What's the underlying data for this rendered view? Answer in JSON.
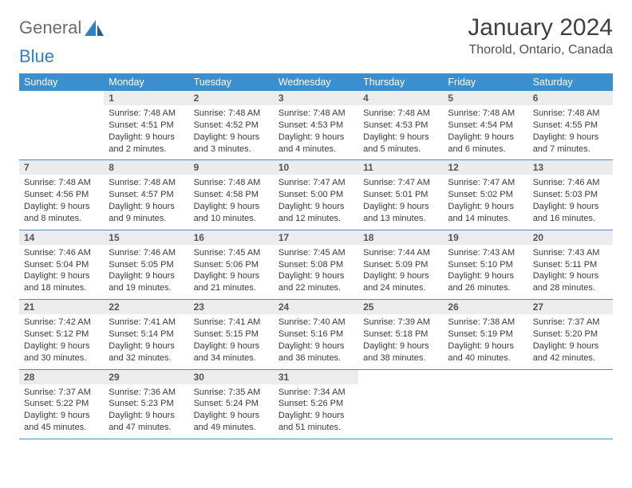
{
  "logo": {
    "text1": "General",
    "text2": "Blue"
  },
  "header": {
    "title": "January 2024",
    "location": "Thorold, Ontario, Canada"
  },
  "weekdays": [
    "Sunday",
    "Monday",
    "Tuesday",
    "Wednesday",
    "Thursday",
    "Friday",
    "Saturday"
  ],
  "colors": {
    "header_bg": "#3b8fce",
    "header_fg": "#ffffff",
    "daynum_bg": "#ececec",
    "rule": "#3b8fce",
    "logo_blue": "#2f7fc1"
  },
  "weeks": [
    [
      {
        "n": "",
        "sunrise": "",
        "sunset": "",
        "daylight": ""
      },
      {
        "n": "1",
        "sunrise": "Sunrise: 7:48 AM",
        "sunset": "Sunset: 4:51 PM",
        "daylight": "Daylight: 9 hours and 2 minutes."
      },
      {
        "n": "2",
        "sunrise": "Sunrise: 7:48 AM",
        "sunset": "Sunset: 4:52 PM",
        "daylight": "Daylight: 9 hours and 3 minutes."
      },
      {
        "n": "3",
        "sunrise": "Sunrise: 7:48 AM",
        "sunset": "Sunset: 4:53 PM",
        "daylight": "Daylight: 9 hours and 4 minutes."
      },
      {
        "n": "4",
        "sunrise": "Sunrise: 7:48 AM",
        "sunset": "Sunset: 4:53 PM",
        "daylight": "Daylight: 9 hours and 5 minutes."
      },
      {
        "n": "5",
        "sunrise": "Sunrise: 7:48 AM",
        "sunset": "Sunset: 4:54 PM",
        "daylight": "Daylight: 9 hours and 6 minutes."
      },
      {
        "n": "6",
        "sunrise": "Sunrise: 7:48 AM",
        "sunset": "Sunset: 4:55 PM",
        "daylight": "Daylight: 9 hours and 7 minutes."
      }
    ],
    [
      {
        "n": "7",
        "sunrise": "Sunrise: 7:48 AM",
        "sunset": "Sunset: 4:56 PM",
        "daylight": "Daylight: 9 hours and 8 minutes."
      },
      {
        "n": "8",
        "sunrise": "Sunrise: 7:48 AM",
        "sunset": "Sunset: 4:57 PM",
        "daylight": "Daylight: 9 hours and 9 minutes."
      },
      {
        "n": "9",
        "sunrise": "Sunrise: 7:48 AM",
        "sunset": "Sunset: 4:58 PM",
        "daylight": "Daylight: 9 hours and 10 minutes."
      },
      {
        "n": "10",
        "sunrise": "Sunrise: 7:47 AM",
        "sunset": "Sunset: 5:00 PM",
        "daylight": "Daylight: 9 hours and 12 minutes."
      },
      {
        "n": "11",
        "sunrise": "Sunrise: 7:47 AM",
        "sunset": "Sunset: 5:01 PM",
        "daylight": "Daylight: 9 hours and 13 minutes."
      },
      {
        "n": "12",
        "sunrise": "Sunrise: 7:47 AM",
        "sunset": "Sunset: 5:02 PM",
        "daylight": "Daylight: 9 hours and 14 minutes."
      },
      {
        "n": "13",
        "sunrise": "Sunrise: 7:46 AM",
        "sunset": "Sunset: 5:03 PM",
        "daylight": "Daylight: 9 hours and 16 minutes."
      }
    ],
    [
      {
        "n": "14",
        "sunrise": "Sunrise: 7:46 AM",
        "sunset": "Sunset: 5:04 PM",
        "daylight": "Daylight: 9 hours and 18 minutes."
      },
      {
        "n": "15",
        "sunrise": "Sunrise: 7:46 AM",
        "sunset": "Sunset: 5:05 PM",
        "daylight": "Daylight: 9 hours and 19 minutes."
      },
      {
        "n": "16",
        "sunrise": "Sunrise: 7:45 AM",
        "sunset": "Sunset: 5:06 PM",
        "daylight": "Daylight: 9 hours and 21 minutes."
      },
      {
        "n": "17",
        "sunrise": "Sunrise: 7:45 AM",
        "sunset": "Sunset: 5:08 PM",
        "daylight": "Daylight: 9 hours and 22 minutes."
      },
      {
        "n": "18",
        "sunrise": "Sunrise: 7:44 AM",
        "sunset": "Sunset: 5:09 PM",
        "daylight": "Daylight: 9 hours and 24 minutes."
      },
      {
        "n": "19",
        "sunrise": "Sunrise: 7:43 AM",
        "sunset": "Sunset: 5:10 PM",
        "daylight": "Daylight: 9 hours and 26 minutes."
      },
      {
        "n": "20",
        "sunrise": "Sunrise: 7:43 AM",
        "sunset": "Sunset: 5:11 PM",
        "daylight": "Daylight: 9 hours and 28 minutes."
      }
    ],
    [
      {
        "n": "21",
        "sunrise": "Sunrise: 7:42 AM",
        "sunset": "Sunset: 5:12 PM",
        "daylight": "Daylight: 9 hours and 30 minutes."
      },
      {
        "n": "22",
        "sunrise": "Sunrise: 7:41 AM",
        "sunset": "Sunset: 5:14 PM",
        "daylight": "Daylight: 9 hours and 32 minutes."
      },
      {
        "n": "23",
        "sunrise": "Sunrise: 7:41 AM",
        "sunset": "Sunset: 5:15 PM",
        "daylight": "Daylight: 9 hours and 34 minutes."
      },
      {
        "n": "24",
        "sunrise": "Sunrise: 7:40 AM",
        "sunset": "Sunset: 5:16 PM",
        "daylight": "Daylight: 9 hours and 36 minutes."
      },
      {
        "n": "25",
        "sunrise": "Sunrise: 7:39 AM",
        "sunset": "Sunset: 5:18 PM",
        "daylight": "Daylight: 9 hours and 38 minutes."
      },
      {
        "n": "26",
        "sunrise": "Sunrise: 7:38 AM",
        "sunset": "Sunset: 5:19 PM",
        "daylight": "Daylight: 9 hours and 40 minutes."
      },
      {
        "n": "27",
        "sunrise": "Sunrise: 7:37 AM",
        "sunset": "Sunset: 5:20 PM",
        "daylight": "Daylight: 9 hours and 42 minutes."
      }
    ],
    [
      {
        "n": "28",
        "sunrise": "Sunrise: 7:37 AM",
        "sunset": "Sunset: 5:22 PM",
        "daylight": "Daylight: 9 hours and 45 minutes."
      },
      {
        "n": "29",
        "sunrise": "Sunrise: 7:36 AM",
        "sunset": "Sunset: 5:23 PM",
        "daylight": "Daylight: 9 hours and 47 minutes."
      },
      {
        "n": "30",
        "sunrise": "Sunrise: 7:35 AM",
        "sunset": "Sunset: 5:24 PM",
        "daylight": "Daylight: 9 hours and 49 minutes."
      },
      {
        "n": "31",
        "sunrise": "Sunrise: 7:34 AM",
        "sunset": "Sunset: 5:26 PM",
        "daylight": "Daylight: 9 hours and 51 minutes."
      },
      {
        "n": "",
        "sunrise": "",
        "sunset": "",
        "daylight": ""
      },
      {
        "n": "",
        "sunrise": "",
        "sunset": "",
        "daylight": ""
      },
      {
        "n": "",
        "sunrise": "",
        "sunset": "",
        "daylight": ""
      }
    ]
  ]
}
